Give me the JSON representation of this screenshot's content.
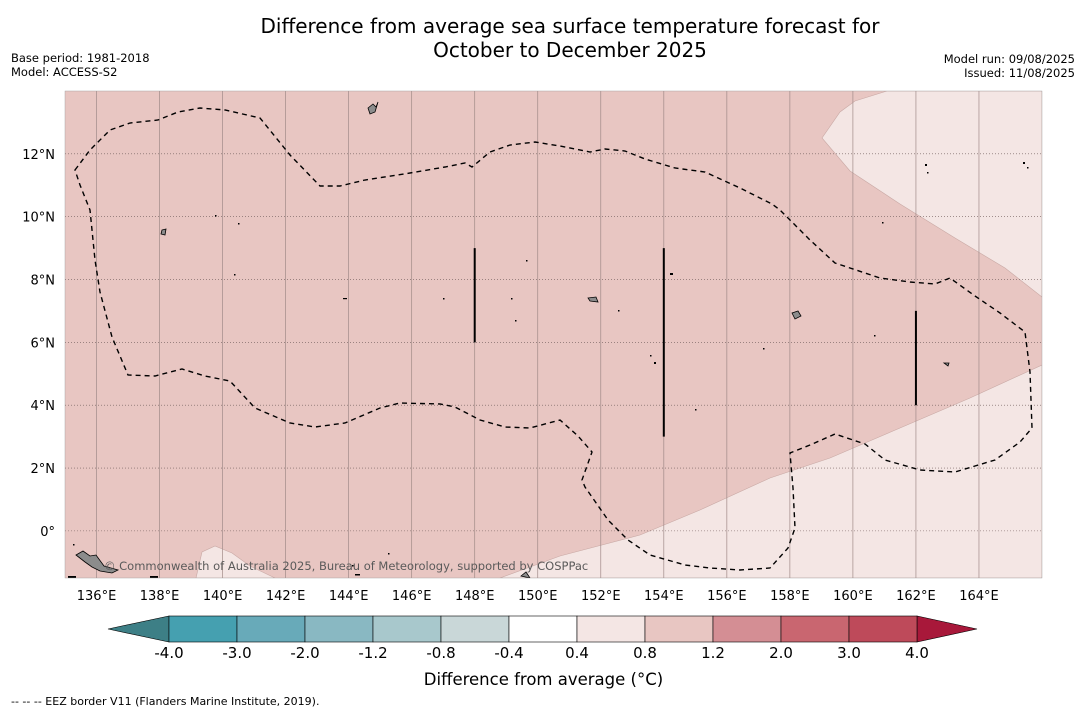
{
  "title_line1": "Difference from average sea surface temperature forecast for",
  "title_line2": "October to December 2025",
  "base_period": "Base period: 1981-2018",
  "model": "Model: ACCESS-S2",
  "model_run": "Model run: 09/08/2025",
  "issued": "Issued: 11/08/2025",
  "credit": "© Commonwealth of Australia 2025, Bureau of Meteorology, supported by COSPPac",
  "footer_legend": "--  --  -- EEZ border V11 (Flanders Marine Institute, 2019).",
  "map": {
    "lon_range": [
      135,
      166
    ],
    "lat_range": [
      -1.5,
      14
    ],
    "lon_ticks": [
      "136°E",
      "138°E",
      "140°E",
      "142°E",
      "144°E",
      "146°E",
      "148°E",
      "150°E",
      "152°E",
      "154°E",
      "156°E",
      "158°E",
      "160°E",
      "162°E",
      "164°E"
    ],
    "lat_ticks": [
      "0°",
      "2°N",
      "4°N",
      "6°N",
      "8°N",
      "10°N",
      "12°N"
    ],
    "colors": {
      "anomaly_0_4_0_8": "#f4e6e4",
      "anomaly_0_8_1_2": "#e8c6c2",
      "land": "#8c8c8c",
      "eez": "#000000"
    },
    "transects": [
      {
        "lon": 148,
        "lat_from": 6,
        "lat_to": 9
      },
      {
        "lon": 154,
        "lat_from": 3,
        "lat_to": 9
      },
      {
        "lon": 162,
        "lat_from": 4,
        "lat_to": 7
      }
    ]
  },
  "colorbar": {
    "label": "Difference from average (°C)",
    "ticks": [
      "-4.0",
      "-3.0",
      "-2.0",
      "-1.2",
      "-0.8",
      "-0.4",
      "0.4",
      "0.8",
      "1.2",
      "2.0",
      "3.0",
      "4.0"
    ],
    "under_color": "#3d7f86",
    "over_color": "#a8183a",
    "colors": [
      "#45a0b0",
      "#68aab9",
      "#89b8c2",
      "#a8c8cc",
      "#c9d7d8",
      "#ffffff",
      "#f4e6e4",
      "#e8c6c2",
      "#d48e94",
      "#c96670",
      "#be4a5a"
    ]
  }
}
